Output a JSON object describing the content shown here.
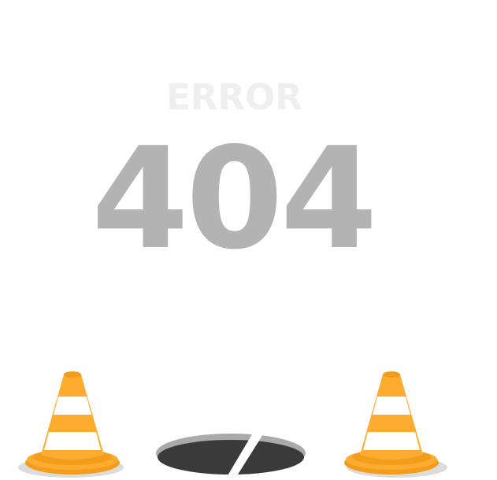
{
  "error": {
    "label": "ERROR",
    "code": "404"
  },
  "colors": {
    "background": "#ffffff",
    "label_text": "#efefef",
    "code_text": "#b3b3b3",
    "cone_orange": "#fdac30",
    "cone_orange_dark": "#f39d1c",
    "cone_stripe": "#ffffff",
    "cone_shadow": "#dcdcdc",
    "manhole_rim": "#aaaaaa",
    "manhole_fill": "#3a3a3a"
  },
  "icons": {
    "left_cone": "traffic-cone-icon",
    "right_cone": "traffic-cone-icon",
    "manhole": "open-manhole-icon"
  }
}
